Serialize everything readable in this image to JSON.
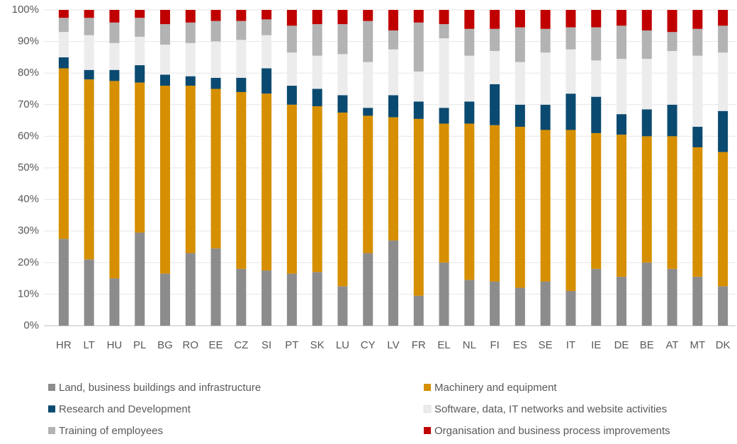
{
  "chart_data": {
    "type": "stacked_bar",
    "categories": [
      "HR",
      "LT",
      "HU",
      "PL",
      "BG",
      "RO",
      "EE",
      "CZ",
      "SI",
      "PT",
      "SK",
      "LU",
      "CY",
      "LV",
      "FR",
      "EL",
      "NL",
      "FI",
      "ES",
      "SE",
      "IT",
      "IE",
      "DE",
      "BE",
      "AT",
      "MT",
      "DK"
    ],
    "series": [
      {
        "name": "Land, business buildings and infrastructure",
        "color": "#8c8c8c",
        "values": [
          27.5,
          21,
          15,
          29.5,
          16.5,
          23,
          24.5,
          18,
          17.5,
          16.5,
          17,
          12.5,
          23,
          27,
          9.5,
          20,
          14.5,
          14,
          12,
          14,
          11,
          18,
          15.5,
          20,
          18,
          15.5,
          12.5
        ]
      },
      {
        "name": "Machinery and equipment",
        "color": "#d68f00",
        "values": [
          54,
          57,
          62.5,
          47.5,
          59.5,
          53,
          50.5,
          56,
          56,
          53.5,
          52.5,
          55,
          43.5,
          39,
          56,
          44,
          49.5,
          49.5,
          51,
          48,
          51,
          43,
          45,
          40,
          42,
          41,
          42.5
        ]
      },
      {
        "name": "Research and Development",
        "color": "#0b4a70",
        "values": [
          3.5,
          3,
          3.5,
          5.5,
          3.5,
          3,
          3.5,
          4.5,
          8,
          6,
          5.5,
          5.5,
          2.5,
          7,
          5.5,
          5,
          7,
          13,
          7,
          8,
          11.5,
          11.5,
          6.5,
          8.5,
          10,
          6.5,
          13
        ]
      },
      {
        "name": "Software, data, IT networks and website activities",
        "color": "#ececec",
        "values": [
          8,
          11,
          8.5,
          9,
          9.5,
          10.5,
          11.5,
          12,
          10.5,
          10.5,
          10.5,
          13,
          14.5,
          14.5,
          9.5,
          22,
          14.5,
          10.5,
          13.5,
          16.5,
          14,
          11.5,
          17.5,
          16,
          17,
          22.5,
          18.5
        ]
      },
      {
        "name": "Training of employees",
        "color": "#b3b3b3",
        "values": [
          4.5,
          5.5,
          6.5,
          6,
          6.5,
          6.5,
          6.5,
          6,
          5,
          8.5,
          10,
          9.5,
          13,
          6,
          15.5,
          4.5,
          8.5,
          7,
          11,
          7.5,
          7,
          10.5,
          10.5,
          9,
          6,
          8.5,
          8.5
        ]
      },
      {
        "name": "Organisation and business process improvements",
        "color": "#c00000",
        "values": [
          2.5,
          2.5,
          4,
          2.5,
          4.5,
          4,
          3.5,
          3.5,
          3,
          5,
          4.5,
          4.5,
          3.5,
          6.5,
          4,
          4.5,
          6,
          6,
          5.5,
          6,
          5.5,
          5.5,
          5,
          6.5,
          7,
          6,
          5
        ]
      }
    ],
    "ylim": [
      0,
      100
    ],
    "yticks": [
      {
        "value": 0,
        "label": "0%"
      },
      {
        "value": 10,
        "label": "10%"
      },
      {
        "value": 20,
        "label": "20%"
      },
      {
        "value": 30,
        "label": "30%"
      },
      {
        "value": 40,
        "label": "40%"
      },
      {
        "value": 50,
        "label": "50%"
      },
      {
        "value": 60,
        "label": "60%"
      },
      {
        "value": 70,
        "label": "70%"
      },
      {
        "value": 80,
        "label": "80%"
      },
      {
        "value": 90,
        "label": "90%"
      },
      {
        "value": 100,
        "label": "100%"
      }
    ],
    "grid": true
  }
}
